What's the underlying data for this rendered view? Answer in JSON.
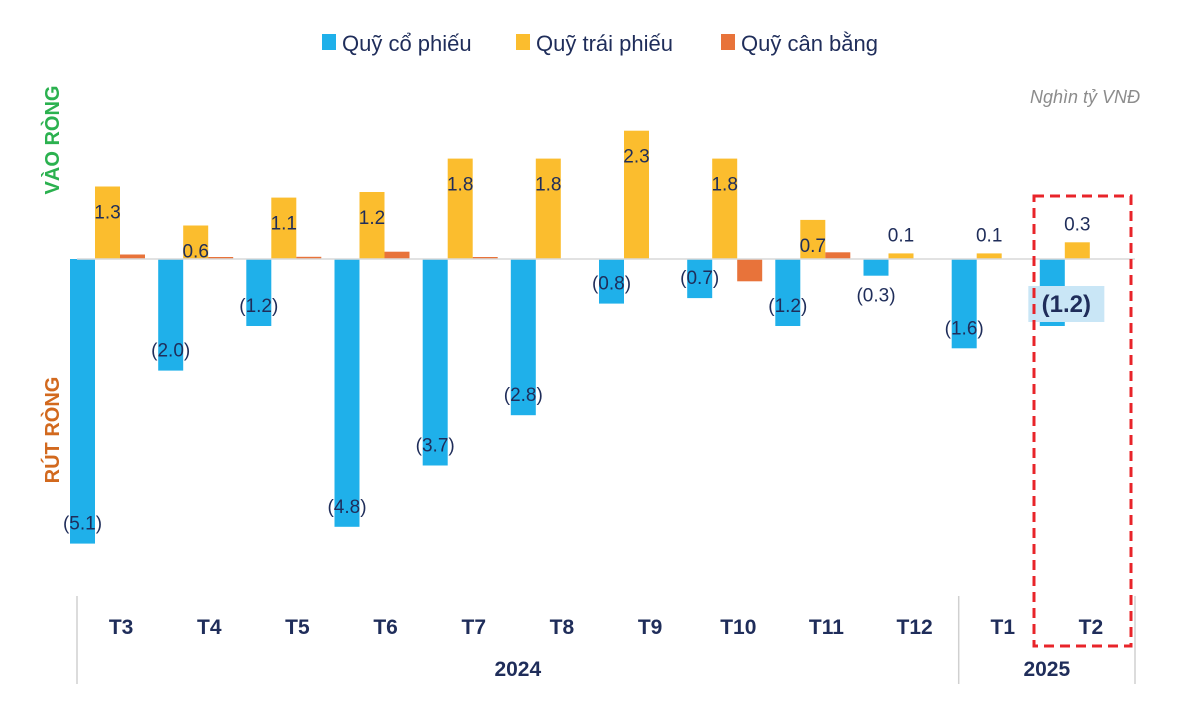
{
  "chart_data": {
    "type": "bar",
    "unit": "Nghìn tỷ VNĐ",
    "positive_label": "VÀO RÒNG",
    "negative_label": "RÚT RÒNG",
    "categories": [
      "T3",
      "T4",
      "T5",
      "T6",
      "T7",
      "T8",
      "T9",
      "T10",
      "T11",
      "T12",
      "T1",
      "T2"
    ],
    "year_groups": [
      {
        "label": "2024",
        "span": 10
      },
      {
        "label": "2025",
        "span": 2
      }
    ],
    "ylim": [
      -5.3,
      2.5
    ],
    "highlight_category": "T2",
    "series": [
      {
        "name": "Quỹ cổ phiếu",
        "color": "#1fb0ea",
        "values": [
          -5.1,
          -2.0,
          -1.2,
          -4.8,
          -3.7,
          -2.8,
          -0.8,
          -0.7,
          -1.2,
          -0.3,
          -1.6,
          -1.2
        ],
        "labels": [
          "(5.1)",
          "(2.0)",
          "(1.2)",
          "(4.8)",
          "(3.7)",
          "(2.8)",
          "(0.8)",
          "(0.7)",
          "(1.2)",
          "(0.3)",
          "(1.6)",
          "(1.2)"
        ]
      },
      {
        "name": "Quỹ trái phiếu",
        "color": "#fbbd2e",
        "values": [
          1.3,
          0.6,
          1.1,
          1.2,
          1.8,
          1.8,
          2.3,
          1.8,
          0.7,
          0.1,
          0.1,
          0.3
        ],
        "labels": [
          "1.3",
          "0.6",
          "1.1",
          "1.2",
          "1.8",
          "1.8",
          "2.3",
          "1.8",
          "0.7",
          "0.1",
          "0.1",
          "0.3"
        ]
      },
      {
        "name": "Quỹ cân bằng",
        "color": "#e8733a",
        "values": [
          0.08,
          0.02,
          0.04,
          0.13,
          0.03,
          0.0,
          0.0,
          -0.4,
          0.12,
          0.0,
          0.0,
          0.0
        ],
        "labels": []
      }
    ]
  },
  "colors": {
    "positive_label": "#2bb14f",
    "negative_label": "#d2691e",
    "text": "#1f2d5a",
    "highlight_box": "#e8242a",
    "highlight_label_bg": "#c9e6f6"
  }
}
